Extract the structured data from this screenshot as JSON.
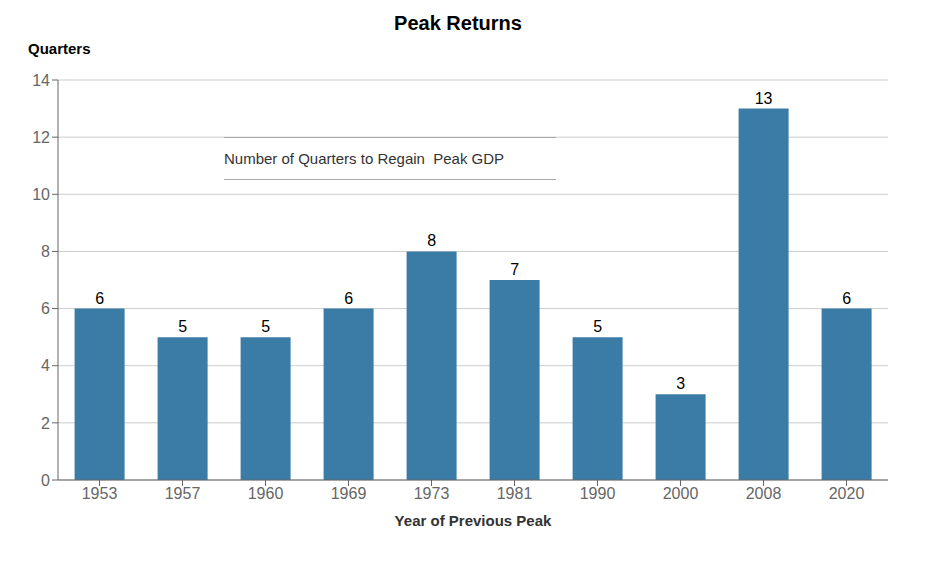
{
  "chart_data": {
    "type": "bar",
    "title": "Peak Returns",
    "xlabel": "Year of Previous Peak",
    "ylabel": "Quarters",
    "annotation": "Number of Quarters to Regain  Peak GDP",
    "categories": [
      "1953",
      "1957",
      "1960",
      "1969",
      "1973",
      "1981",
      "1990",
      "2000",
      "2008",
      "2020"
    ],
    "values": [
      6,
      5,
      5,
      6,
      8,
      7,
      5,
      3,
      13,
      6
    ],
    "color": "#3A7CA5",
    "ylim": [
      0,
      14
    ],
    "yticks": [
      0,
      2,
      4,
      6,
      8,
      10,
      12,
      14
    ],
    "grid": true,
    "data_labels": true
  }
}
